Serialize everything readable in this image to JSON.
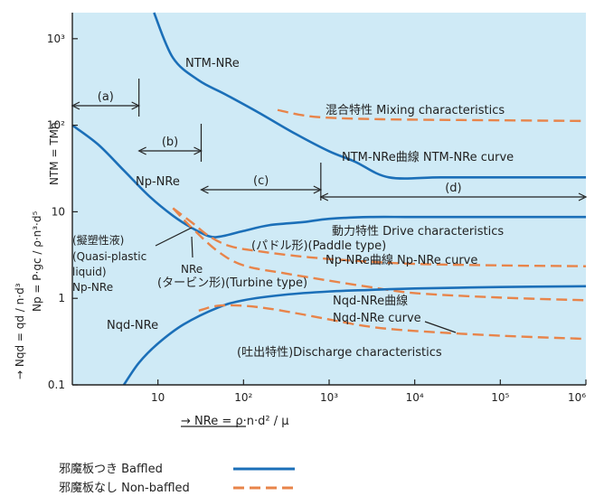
{
  "chart_data": {
    "type": "line",
    "x_scale": "log",
    "y_scale": "log",
    "xlim": [
      1,
      1000000
    ],
    "ylim": [
      0.1,
      2000
    ],
    "background": "#cfeaf6",
    "colors": {
      "baffled": "#1b6fb8",
      "non_baffled": "#e8844a",
      "axis": "#222222"
    },
    "x_ticks": [
      {
        "value": 10,
        "label": "10"
      },
      {
        "value": 100,
        "label": "10²"
      },
      {
        "value": 1000,
        "label": "10³"
      },
      {
        "value": 10000,
        "label": "10⁴"
      },
      {
        "value": 100000,
        "label": "10⁵"
      },
      {
        "value": 1000000,
        "label": "10⁶"
      }
    ],
    "y_ticks": [
      {
        "value": 0.1,
        "label": "0.1"
      },
      {
        "value": 1,
        "label": "1"
      },
      {
        "value": 10,
        "label": "10"
      },
      {
        "value": 100,
        "label": "10²"
      },
      {
        "value": 1000,
        "label": "10³"
      }
    ],
    "xlabel": "→ NRe = ρ·n·d² / μ",
    "ylabel_np": "Np = P·gc / ρ·n³·d⁵",
    "ylabel_ntm": "NTM = TMn",
    "ylabel_nqd": "→ Nqd = qd / n·d³",
    "series": [
      {
        "name": "NTM-NRe",
        "style": "baffled",
        "x": [
          9,
          15,
          30,
          60,
          150,
          400,
          1000,
          2000,
          5000,
          20000,
          100000,
          1000000
        ],
        "y": [
          2000,
          600,
          330,
          230,
          140,
          80,
          50,
          38,
          25,
          25,
          25,
          25
        ]
      },
      {
        "name": "Mixing characteristics",
        "style": "non_baffled",
        "x": [
          250,
          500,
          1000,
          3000,
          10000,
          100000,
          1000000
        ],
        "y": [
          150,
          130,
          122,
          118,
          116,
          114,
          112
        ]
      },
      {
        "name": "Np-NRe",
        "style": "baffled",
        "x": [
          1,
          2,
          4,
          8,
          15,
          25,
          40,
          55,
          100,
          200,
          500,
          1000,
          3000,
          10000,
          100000,
          1000000
        ],
        "y": [
          100,
          60,
          30,
          15,
          9,
          6.5,
          5.2,
          5.2,
          6,
          7,
          7.6,
          8.3,
          8.7,
          8.7,
          8.7,
          8.7
        ]
      },
      {
        "name": "Paddle type",
        "style": "non_baffled",
        "x": [
          15,
          25,
          40,
          70,
          150,
          400,
          1000,
          3000,
          10000,
          100000,
          1000000
        ],
        "y": [
          11,
          7.5,
          5.2,
          4,
          3.5,
          3.1,
          2.85,
          2.65,
          2.5,
          2.4,
          2.35
        ]
      },
      {
        "name": "Turbine type",
        "style": "non_baffled",
        "x": [
          15,
          25,
          50,
          100,
          300,
          1000,
          3000,
          10000,
          100000,
          1000000
        ],
        "y": [
          11,
          6.5,
          3.5,
          2.4,
          1.95,
          1.6,
          1.35,
          1.15,
          1.02,
          0.95
        ]
      },
      {
        "name": "Nqd-NRe",
        "style": "baffled",
        "x": [
          4,
          6,
          10,
          20,
          50,
          100,
          300,
          1000,
          3000,
          10000,
          100000,
          1000000
        ],
        "y": [
          0.1,
          0.18,
          0.3,
          0.5,
          0.78,
          0.95,
          1.1,
          1.2,
          1.25,
          1.3,
          1.35,
          1.38
        ]
      },
      {
        "name": "Discharge characteristics",
        "style": "non_baffled",
        "x": [
          30,
          50,
          100,
          200,
          500,
          1000,
          3000,
          10000,
          100000,
          1000000
        ],
        "y": [
          0.72,
          0.82,
          0.82,
          0.76,
          0.65,
          0.57,
          0.47,
          0.42,
          0.37,
          0.34
        ]
      }
    ],
    "regions": [
      {
        "label": "(a)",
        "from": 1,
        "to": 6
      },
      {
        "label": "(b)",
        "from": 6,
        "to": 32
      },
      {
        "label": "(c)",
        "from": 32,
        "to": 800
      },
      {
        "label": "(d)",
        "from": 800,
        "to": 1000000
      }
    ],
    "annotations": [
      "NTM-NRe",
      "混合特性 Mixing characteristics",
      "NTM-NRe曲線 NTM-NRe curve",
      "Np-NRe",
      "動力特性 Drive characteristics",
      "(パドル形)(Paddle type)",
      "Np-NRe曲線 Np-NRe curve",
      "NRe",
      "(タービン形)(Turbine type)",
      "(擬塑性液)",
      "(Quasi-plastic",
      "liquid)",
      "Np-NRe",
      "Nqd-NRe曲線",
      "Nqd-NRe curve",
      "Nqd-NRe",
      "(吐出特性)Discharge characteristics"
    ],
    "legend": {
      "position": "bottom-left",
      "items": [
        {
          "label": "邪魔板つき Baffled",
          "style": "baffled"
        },
        {
          "label": "邪魔板なし Non-baffled",
          "style": "non_baffled"
        }
      ]
    }
  }
}
